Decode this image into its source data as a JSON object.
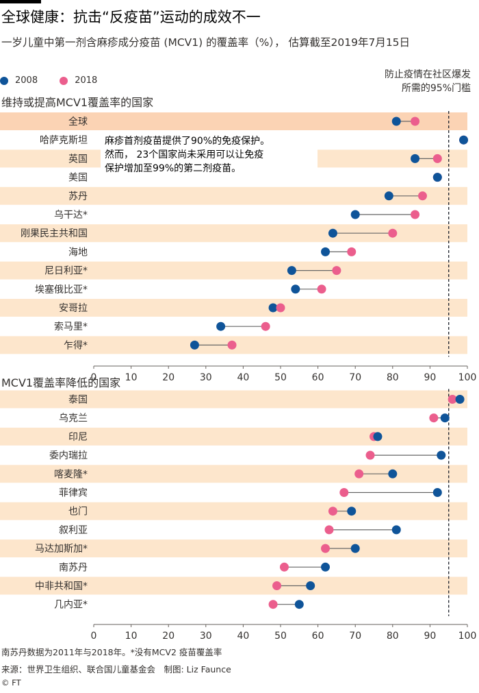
{
  "title": "全球健康：抗击“反疫苗”运动的成效不一",
  "subtitle": "一岁儿童中第一剂含麻疹成分疫苗 (MCV1) 的覆盖率（%）， 估算截至2019年7月15日",
  "legend": [
    {
      "label": "2008",
      "color": "#0f5499"
    },
    {
      "label": "2018",
      "color": "#eb5e8d"
    }
  ],
  "threshold_note": [
    "防止疫情在社区爆发",
    "所需的95%门槛"
  ],
  "annotation": [
    "麻疹首剂疫苗提供了90%的免疫保护。",
    "然而， 23个国家尚未采用可以让免疫",
    "保护增加至99%的第二剂疫苗。"
  ],
  "colors": {
    "band": "#fde6cc",
    "highlight_band": "#fbd3b4",
    "line": "#666666",
    "threshold": "#262a33"
  },
  "chart_data": [
    {
      "type": "dumbbell",
      "title": "维持或提高MCV1覆盖率的国家",
      "xlim": [
        0,
        100
      ],
      "xticks": [
        0,
        10,
        20,
        30,
        40,
        50,
        60,
        70,
        80,
        90,
        100
      ],
      "threshold": 95,
      "categories": [
        "全球",
        "哈萨克斯坦",
        "英国",
        "美国",
        "苏丹",
        "乌干达*",
        "刚果民主共和国",
        "海地",
        "尼日利亚*",
        "埃塞俄比亚*",
        "安哥拉",
        "索马里*",
        "乍得*"
      ],
      "series": [
        {
          "name": "2008",
          "values": [
            81,
            99,
            86,
            92,
            79,
            70,
            64,
            62,
            53,
            54,
            48,
            34,
            27
          ]
        },
        {
          "name": "2018",
          "values": [
            86,
            99,
            92,
            92,
            88,
            86,
            80,
            69,
            65,
            61,
            50,
            46,
            37
          ]
        }
      ]
    },
    {
      "type": "dumbbell",
      "title": "MCV1覆盖率降低的国家",
      "xlim": [
        0,
        100
      ],
      "xticks": [
        0,
        10,
        20,
        30,
        40,
        50,
        60,
        70,
        80,
        90,
        100
      ],
      "threshold": 95,
      "categories": [
        "泰国",
        "乌克兰",
        "印尼",
        "委内瑞拉",
        "喀麦隆*",
        "菲律宾",
        "也门",
        "叙利亚",
        "马达加斯加*",
        "南苏丹",
        "中非共和国*",
        "几内亚*"
      ],
      "series": [
        {
          "name": "2008",
          "values": [
            98,
            94,
            76,
            93,
            80,
            92,
            69,
            81,
            70,
            62,
            58,
            55
          ]
        },
        {
          "name": "2018",
          "values": [
            96,
            91,
            75,
            74,
            71,
            67,
            64,
            63,
            62,
            51,
            49,
            48
          ]
        }
      ]
    }
  ],
  "footer": {
    "note": "南苏丹数据为2011年与2018年。*没有MCV2 疫苗覆盖率",
    "source": "来源：世界卫生组织、联合国儿童基金会　制图: Liz Faunce",
    "copyright": "© FT"
  }
}
